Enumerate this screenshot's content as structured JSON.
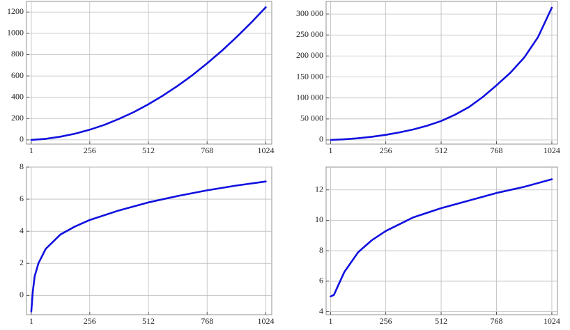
{
  "chart_data": [
    {
      "type": "line",
      "color": "#1010e0",
      "grid": true,
      "x": [
        1,
        64,
        128,
        192,
        256,
        320,
        384,
        448,
        512,
        576,
        640,
        704,
        768,
        832,
        896,
        960,
        1024
      ],
      "values": [
        0,
        10,
        30,
        58,
        95,
        141,
        197,
        261,
        334,
        417,
        508,
        608,
        718,
        836,
        964,
        1100,
        1245
      ],
      "xlim": [
        -20,
        1050
      ],
      "xticks": [
        1,
        256,
        512,
        768,
        1024
      ],
      "ylim": [
        -40,
        1300
      ],
      "yticks": [
        0,
        200,
        400,
        600,
        800,
        1000,
        1200
      ]
    },
    {
      "type": "line",
      "color": "#1010e0",
      "grid": true,
      "x": [
        1,
        64,
        128,
        192,
        256,
        320,
        384,
        448,
        512,
        576,
        640,
        704,
        768,
        832,
        896,
        960,
        1024
      ],
      "values": [
        0,
        1500,
        4000,
        7500,
        12000,
        18000,
        25000,
        34000,
        45000,
        60000,
        78000,
        102000,
        130000,
        160000,
        196000,
        245000,
        315000
      ],
      "xlim": [
        -20,
        1050
      ],
      "xticks": [
        1,
        256,
        512,
        768,
        1024
      ],
      "ylim": [
        -10000,
        330000
      ],
      "yticks": [
        0,
        {
          "value": 50000,
          "label": "50 000"
        },
        {
          "value": 100000,
          "label": "100 000"
        },
        {
          "value": 150000,
          "label": "150 000"
        },
        {
          "value": 200000,
          "label": "200 000"
        },
        {
          "value": 250000,
          "label": "250 000"
        },
        {
          "value": 300000,
          "label": "300 000"
        }
      ]
    },
    {
      "type": "line",
      "color": "#1010e0",
      "grid": true,
      "x": [
        1,
        8,
        16,
        32,
        64,
        128,
        192,
        256,
        384,
        512,
        640,
        768,
        896,
        1024
      ],
      "values": [
        -1.0,
        0.3,
        1.2,
        2.0,
        2.9,
        3.8,
        4.3,
        4.7,
        5.3,
        5.8,
        6.2,
        6.55,
        6.85,
        7.1
      ],
      "xlim": [
        -20,
        1050
      ],
      "xticks": [
        1,
        256,
        512,
        768,
        1024
      ],
      "ylim": [
        -1.2,
        8
      ],
      "yticks": [
        0,
        2,
        4,
        6,
        8
      ]
    },
    {
      "type": "line",
      "color": "#1010e0",
      "grid": true,
      "x": [
        1,
        16,
        32,
        64,
        128,
        192,
        256,
        384,
        512,
        640,
        768,
        896,
        1024
      ],
      "values": [
        5.0,
        5.1,
        5.6,
        6.6,
        7.9,
        8.7,
        9.3,
        10.2,
        10.8,
        11.3,
        11.8,
        12.2,
        12.7
      ],
      "xlim": [
        -20,
        1050
      ],
      "xticks": [
        1,
        256,
        512,
        768,
        1024
      ],
      "ylim": [
        3.8,
        13.5
      ],
      "yticks": [
        4,
        6,
        8,
        10,
        12
      ]
    }
  ]
}
